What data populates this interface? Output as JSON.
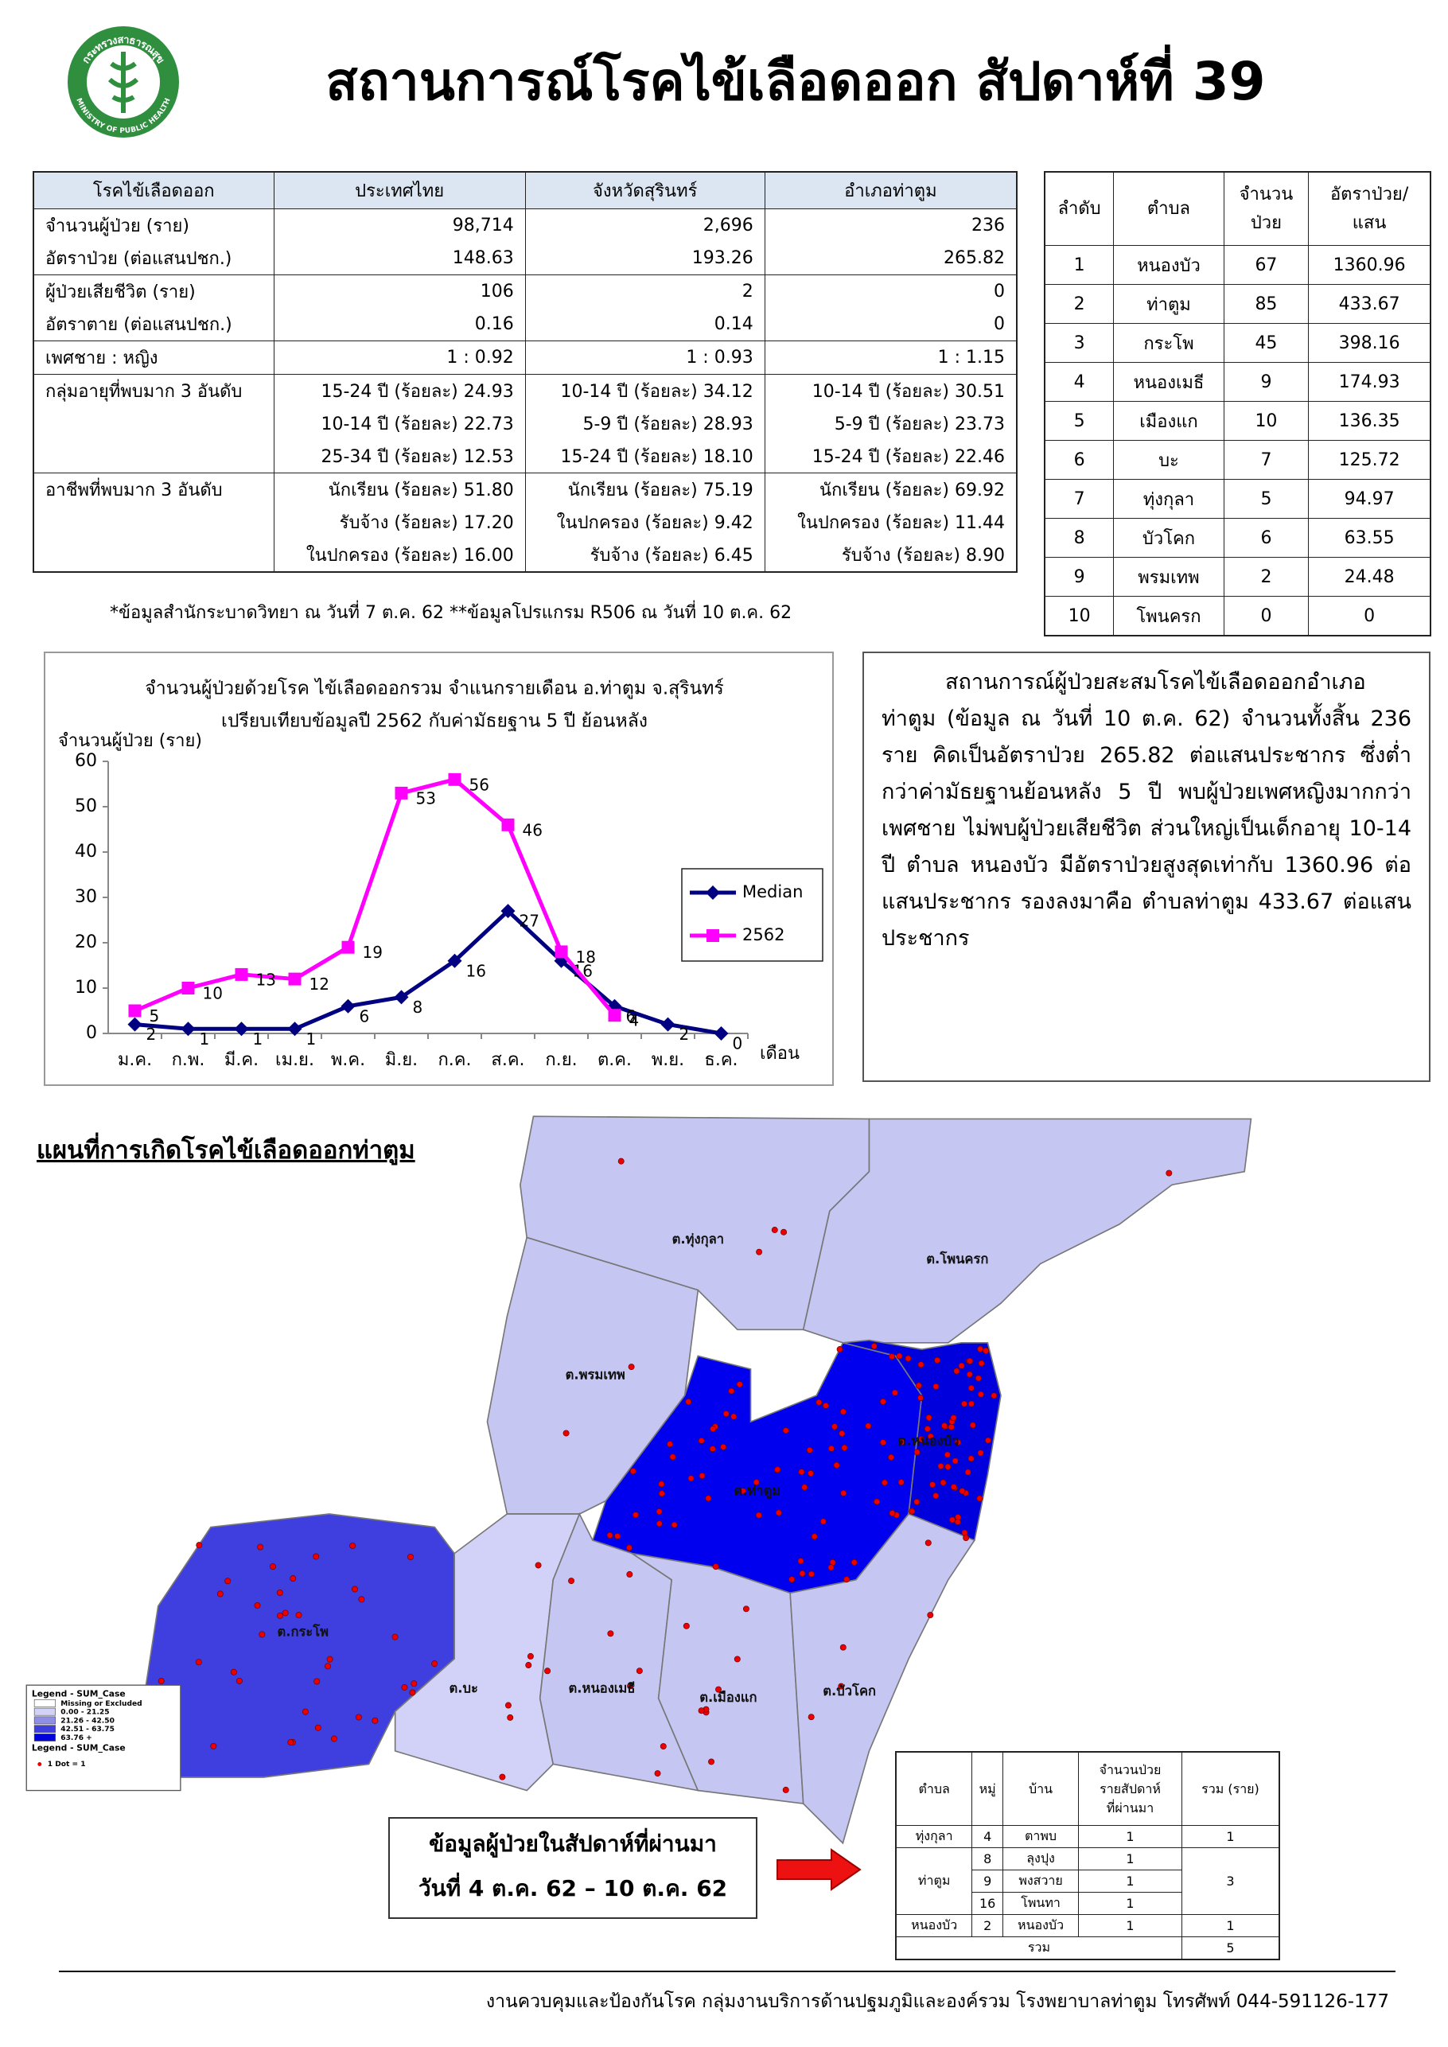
{
  "logo": {
    "text_th": "กระทรวงสาธารณสุข",
    "text_en": "MINISTRY OF PUBLIC HEALTH"
  },
  "header": {
    "title": "สถานการณ์โรคไข้เลือดออก สัปดาห์ที่ 39"
  },
  "summary_table": {
    "header": [
      "โรคไข้เลือดออก",
      "ประเทศไทย",
      "จังหวัดสุรินทร์",
      "อำเภอท่าตูม"
    ],
    "rows": [
      [
        "จำนวนผู้ป่วย (ราย)",
        "98,714",
        "2,696",
        "236"
      ],
      [
        "อัตราป่วย (ต่อแสนปชก.)",
        "148.63",
        "193.26",
        "265.82"
      ],
      [
        "ผู้ป่วยเสียชีวิต (ราย)",
        "106",
        "2",
        "0"
      ],
      [
        "อัตราตาย (ต่อแสนปชก.)",
        "0.16",
        "0.14",
        "0"
      ],
      [
        "เพศชาย : หญิง",
        "1 : 0.92",
        "1 : 0.93",
        "1 : 1.15"
      ],
      [
        "กลุ่มอายุที่พบมาก 3 อันดับ",
        "15-24 ปี (ร้อยละ) 24.93",
        "10-14 ปี (ร้อยละ) 34.12",
        "10-14 ปี (ร้อยละ) 30.51"
      ],
      [
        null,
        "10-14 ปี (ร้อยละ) 22.73",
        "5-9 ปี (ร้อยละ) 28.93",
        "5-9 ปี (ร้อยละ) 23.73"
      ],
      [
        null,
        "25-34 ปี (ร้อยละ) 12.53",
        "15-24 ปี (ร้อยละ) 18.10",
        "15-24 ปี (ร้อยละ) 22.46"
      ],
      [
        "อาชีพที่พบมาก 3 อันดับ",
        "นักเรียน (ร้อยละ) 51.80",
        "นักเรียน (ร้อยละ) 75.19",
        "นักเรียน (ร้อยละ) 69.92"
      ],
      [
        null,
        "รับจ้าง (ร้อยละ) 17.20",
        "ในปกครอง (ร้อยละ) 9.42",
        "ในปกครอง (ร้อยละ) 11.44"
      ],
      [
        null,
        "ในปกครอง (ร้อยละ) 16.00",
        "รับจ้าง (ร้อยละ) 6.45",
        "รับจ้าง (ร้อยละ) 8.90"
      ]
    ]
  },
  "rank_table": {
    "header": [
      [
        "ลำดับ"
      ],
      [
        "ตำบล"
      ],
      [
        "จำนวน",
        "ป่วย"
      ],
      [
        "อัตราป่วย/",
        "แสน"
      ]
    ],
    "rows": [
      [
        "1",
        "หนองบัว",
        "67",
        "1360.96"
      ],
      [
        "2",
        "ท่าตูม",
        "85",
        "433.67"
      ],
      [
        "3",
        "กระโพ",
        "45",
        "398.16"
      ],
      [
        "4",
        "หนองเมธี",
        "9",
        "174.93"
      ],
      [
        "5",
        "เมืองแก",
        "10",
        "136.35"
      ],
      [
        "6",
        "บะ",
        "7",
        "125.72"
      ],
      [
        "7",
        "ทุ่งกุลา",
        "5",
        "94.97"
      ],
      [
        "8",
        "บัวโคก",
        "6",
        "63.55"
      ],
      [
        "9",
        "พรมเทพ",
        "2",
        "24.48"
      ],
      [
        "10",
        "โพนครก",
        "0",
        "0"
      ]
    ]
  },
  "footnote": "*ข้อมูลสำนักระบาดวิทยา ณ วันที่ 7 ต.ค. 62 **ข้อมูลโปรแกรม R506 ณ วันที่ 10 ต.ค. 62",
  "chart_data": {
    "type": "line",
    "title": [
      "จำนวนผู้ป่วยด้วยโรค  ไข้เลือดออกรวม จำแนกรายเดือน อ.ท่าตูม จ.สุรินทร์",
      "เปรียบเทียบข้อมูลปี  2562  กับค่ามัธยฐาน 5 ปี ย้อนหลัง"
    ],
    "y_label": "จำนวนผู้ป่วย (ราย)",
    "x_label": "เดือน",
    "categories": [
      "ม.ค.",
      "ก.พ.",
      "มี.ค.",
      "เม.ย.",
      "พ.ค.",
      "มิ.ย.",
      "ก.ค.",
      "ส.ค.",
      "ก.ย.",
      "ต.ค.",
      "พ.ย.",
      "ธ.ค."
    ],
    "series": [
      {
        "name": "Median",
        "color": "#000080",
        "marker": "diamond",
        "values": [
          2,
          1,
          1,
          1,
          6,
          8,
          16,
          27,
          16,
          6,
          2,
          0
        ]
      },
      {
        "name": "2562",
        "color": "#ff00ff",
        "marker": "square",
        "values": [
          5,
          10,
          13,
          12,
          19,
          53,
          56,
          46,
          18,
          4,
          null,
          null
        ]
      }
    ],
    "ylim": [
      0,
      60
    ],
    "yticks": [
      0,
      10,
      20,
      30,
      40,
      50,
      60
    ],
    "legend": "right"
  },
  "description": "สถานการณ์ผู้ป่วยสะสมโรคไข้เลือดออกอำเภอท่าตูม (ข้อมูล ณ วันที่ 10 ต.ค. 62) จำนวนทั้งสิ้น 236 ราย คิดเป็นอัตราป่วย 265.82 ต่อแสนประชากร ซึ่งต่ำกว่าค่ามัธยฐานย้อนหลัง 5 ปี พบผู้ป่วยเพศหญิงมากกว่าเพศชาย ไม่พบผู้ป่วยเสียชีวิต  ส่วนใหญ่เป็นเด็กอายุ 10-14 ปี ตำบล หนองบัว มีอัตราป่วยสูงสุดเท่ากับ 1360.96 ต่อแสนประชากร รองลงมาคือ ตำบลท่าตูม 433.67 ต่อแสนประชากร",
  "map": {
    "title": "แผนที่การเกิดโรคไข้เลือดออกท่าตูม",
    "labels": [
      "ต.ทุ่งกุลา",
      "ต.โพนครก",
      "ต.พรมเทพ",
      "ต.ท่าตูม",
      "ต.หนองบัว",
      "ต.กระโพ",
      "ต.บะ",
      "ต.หนองเมธี",
      "ต.เมืองแก",
      "ต.บัวโคก"
    ],
    "legend": {
      "title": "Legend - SUM_Case",
      "items": [
        "Missing or Excluded",
        "0.00 - 21.25",
        "21.26 - 42.50",
        "42.51 - 63.75",
        "63.76 +"
      ],
      "dot_title": "Legend - SUM_Case",
      "dot": "1 Dot = 1"
    }
  },
  "week_box": {
    "lines": [
      "ข้อมูลผู้ป่วยในสัปดาห์ที่ผ่านมา",
      "วันที่ 4 ต.ค. 62 – 10 ต.ค. 62"
    ]
  },
  "weekly_table": {
    "header": [
      [
        "ตำบล"
      ],
      [
        "หมู่"
      ],
      [
        "บ้าน"
      ],
      [
        "จำนวนป่วย",
        "รายสัปดาห์",
        "ที่ผ่านมา"
      ],
      [
        "รวม (ราย)"
      ]
    ],
    "groups": [
      {
        "tambon": "ทุ่งกุลา",
        "rows": [
          [
            "4",
            "ตาพบ",
            "1"
          ]
        ],
        "total": "1"
      },
      {
        "tambon": "ท่าตูม",
        "rows": [
          [
            "8",
            "ลุงปุง",
            "1"
          ],
          [
            "9",
            "พงสวาย",
            "1"
          ],
          [
            "16",
            "โพนทา",
            "1"
          ]
        ],
        "total": "3"
      },
      {
        "tambon": "หนองบัว",
        "rows": [
          [
            "2",
            "หนองบัว",
            "1"
          ]
        ],
        "total": "1"
      }
    ],
    "total_label": "รวม",
    "total": "5"
  },
  "footer": "งานควบคุมและป้องกันโรค กลุ่มงานบริการด้านปฐมภูมิและองค์รวม  โรงพยาบาลท่าตูม  โทรศัพท์ 044-591126-177"
}
